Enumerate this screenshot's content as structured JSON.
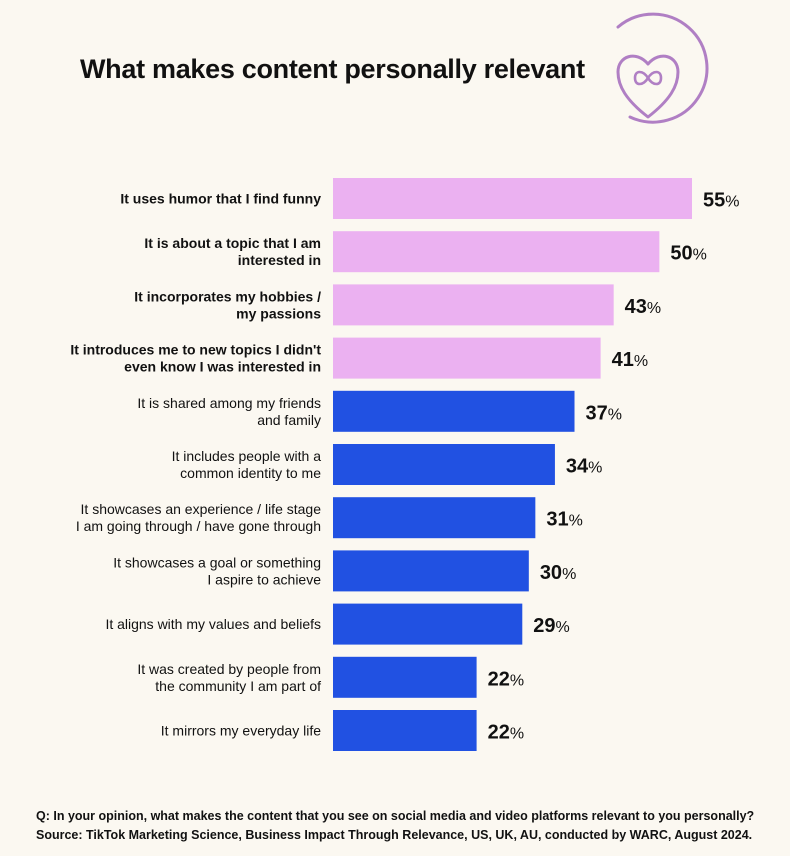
{
  "header": {
    "title": "What makes content personally relevant",
    "logo_icon": "heart-infinity-icon"
  },
  "colors": {
    "background": "#fbf8f1",
    "highlight": "#ebb1f1",
    "primary": "#2151e2",
    "logo": "#b07fc4"
  },
  "chart_data": {
    "type": "bar",
    "orientation": "horizontal",
    "title": "What makes content personally relevant",
    "value_suffix": "%",
    "categories": [
      "It uses humor that I find funny",
      "It is about a topic that I am interested in",
      "It incorporates my hobbies / my passions",
      "It introduces me to new topics I didn't even know I was interested in",
      "It is shared among my friends and family",
      "It includes people with a common identity to me",
      "It showcases an experience / life stage I am going through / have gone through",
      "It showcases a goal or something I aspire to achieve",
      "It aligns with my values and beliefs",
      "It was created by people from the community I am part of",
      "It mirrors my everyday life"
    ],
    "label_lines": [
      [
        "It uses humor that I find funny"
      ],
      [
        "It is about a topic that I am",
        "interested in"
      ],
      [
        "It incorporates my hobbies /",
        "my passions"
      ],
      [
        "It introduces me to new topics I didn't",
        "even know I was interested in"
      ],
      [
        "It is shared among my friends",
        "and family"
      ],
      [
        "It includes people with a",
        "common identity to me"
      ],
      [
        "It showcases an experience / life stage",
        "I am going through / have gone through"
      ],
      [
        "It showcases a goal or something",
        "I aspire to achieve"
      ],
      [
        "It aligns with my values and beliefs"
      ],
      [
        "It was created by people from",
        "the community I am part of"
      ],
      [
        "It mirrors my everyday life"
      ]
    ],
    "values": [
      55,
      50,
      43,
      41,
      37,
      34,
      31,
      30,
      29,
      22,
      22
    ],
    "highlighted": [
      true,
      true,
      true,
      true,
      false,
      false,
      false,
      false,
      false,
      false,
      false
    ],
    "xlim": [
      0,
      55
    ],
    "grid": false,
    "legend": "none"
  },
  "footer": {
    "question": "Q: In your opinion, what makes the content that you see on social media and video platforms relevant to you personally?",
    "source": "Source: TikTok Marketing Science, Business Impact Through Relevance, US, UK, AU, conducted by WARC, August 2024."
  }
}
